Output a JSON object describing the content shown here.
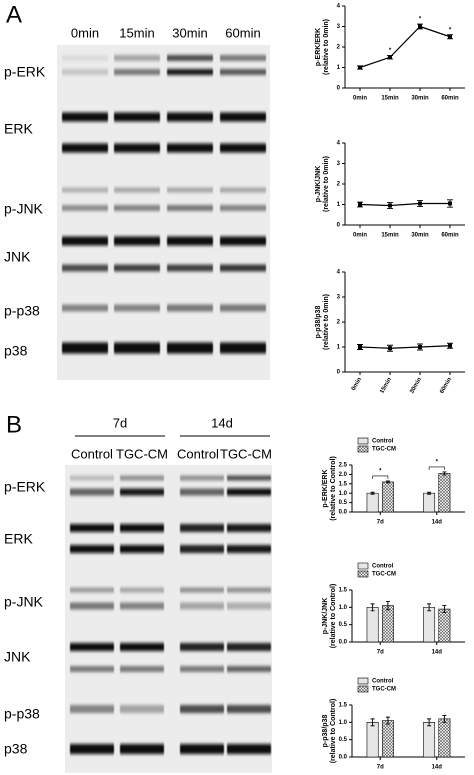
{
  "panel_a": {
    "label": "A",
    "columns": [
      "0min",
      "15min",
      "30min",
      "60min"
    ],
    "rows": [
      "p-ERK",
      "ERK",
      "p-JNK",
      "JNK",
      "p-p38",
      "p38"
    ]
  },
  "panel_b": {
    "label": "B",
    "groups": [
      "7d",
      "14d"
    ],
    "columns": [
      "Control",
      "TGC-CM",
      "Control",
      "TGC-CM"
    ],
    "rows": [
      "p-ERK",
      "ERK",
      "p-JNK",
      "JNK",
      "p-p38",
      "p38"
    ]
  },
  "chart_data": [
    {
      "type": "line",
      "ylabel": "p-ERK/ERK",
      "ylabel2": "(relative to 0min)",
      "categories": [
        "0min",
        "15min",
        "30min",
        "60min"
      ],
      "values": [
        1.0,
        1.5,
        3.0,
        2.5
      ],
      "errors": [
        0.08,
        0.08,
        0.12,
        0.1
      ],
      "color": "#000000",
      "annotations": [
        "*",
        "*",
        "*"
      ],
      "ylim": [
        0,
        4
      ],
      "yticks": [
        0,
        1,
        2,
        3,
        4
      ]
    },
    {
      "type": "line",
      "ylabel": "p-JNK/JNK",
      "ylabel2": "(relative to 0min)",
      "categories": [
        "0min",
        "15min",
        "30min",
        "60min"
      ],
      "values": [
        1.0,
        0.95,
        1.05,
        1.05
      ],
      "errors": [
        0.12,
        0.15,
        0.15,
        0.18
      ],
      "color": "#000000",
      "ylim": [
        0,
        4
      ],
      "yticks": [
        0,
        1,
        2,
        3,
        4
      ]
    },
    {
      "type": "line",
      "ylabel": "p-p38/p38",
      "ylabel2": "(relative to 0min)",
      "categories": [
        "0min",
        "15min",
        "30min",
        "60min"
      ],
      "values": [
        1.0,
        0.95,
        1.0,
        1.05
      ],
      "errors": [
        0.1,
        0.12,
        0.12,
        0.1
      ],
      "color": "#000000",
      "rotate_xlabels": true,
      "ylim": [
        0,
        4
      ],
      "yticks": [
        0,
        1,
        2,
        3,
        4
      ]
    },
    {
      "type": "bar",
      "ylabel": "p-ERK/ERK",
      "ylabel2": "(relative to Control)",
      "categories": [
        "7d",
        "14d"
      ],
      "series": [
        {
          "name": "Control",
          "color": "#eeeeee",
          "pattern": "hlines",
          "values": [
            1.0,
            1.0
          ],
          "errors": [
            0.05,
            0.05
          ]
        },
        {
          "name": "TGC-CM",
          "color": "#ffffff",
          "pattern": "cross",
          "values": [
            1.6,
            2.05
          ],
          "errors": [
            0.05,
            0.08
          ]
        }
      ],
      "annotations": [
        "*",
        "*"
      ],
      "ylim": [
        0,
        2.5
      ],
      "yticks": [
        {
          "value": 0,
          "label": "0.0"
        },
        {
          "value": 0.5,
          "label": "0.5"
        },
        {
          "value": 1,
          "label": "1.0"
        },
        {
          "value": 1.5,
          "label": "1.5"
        },
        {
          "value": 2,
          "label": "2.0"
        },
        {
          "value": 2.5,
          "label": "2.5"
        }
      ]
    },
    {
      "type": "bar",
      "ylabel": "p-JNK/JNK",
      "ylabel2": "(relative to Control)",
      "categories": [
        "7d",
        "14d"
      ],
      "series": [
        {
          "name": "Control",
          "color": "#eeeeee",
          "pattern": "hlines",
          "values": [
            1.0,
            1.0
          ],
          "errors": [
            0.1,
            0.1
          ]
        },
        {
          "name": "TGC-CM",
          "color": "#ffffff",
          "pattern": "cross",
          "values": [
            1.05,
            0.95
          ],
          "errors": [
            0.12,
            0.1
          ]
        }
      ],
      "ylim": [
        0,
        1.5
      ],
      "yticks": [
        {
          "value": 0,
          "label": "0.0"
        },
        {
          "value": 0.5,
          "label": "0.5"
        },
        {
          "value": 1,
          "label": "1.0"
        },
        {
          "value": 1.5,
          "label": "1.5"
        }
      ]
    },
    {
      "type": "bar",
      "ylabel": "p-p38/p38",
      "ylabel2": "(relative to Control)",
      "categories": [
        "7d",
        "14d"
      ],
      "series": [
        {
          "name": "Control",
          "color": "#eeeeee",
          "pattern": "hlines",
          "values": [
            1.0,
            1.0
          ],
          "errors": [
            0.1,
            0.1
          ]
        },
        {
          "name": "TGC-CM",
          "color": "#ffffff",
          "pattern": "cross",
          "values": [
            1.05,
            1.1
          ],
          "errors": [
            0.1,
            0.1
          ]
        }
      ],
      "ylim": [
        0,
        1.5
      ],
      "yticks": [
        {
          "value": 0,
          "label": "0.0"
        },
        {
          "value": 0.5,
          "label": "0.5"
        },
        {
          "value": 1,
          "label": "1.0"
        },
        {
          "value": 1.5,
          "label": "1.5"
        }
      ]
    }
  ]
}
